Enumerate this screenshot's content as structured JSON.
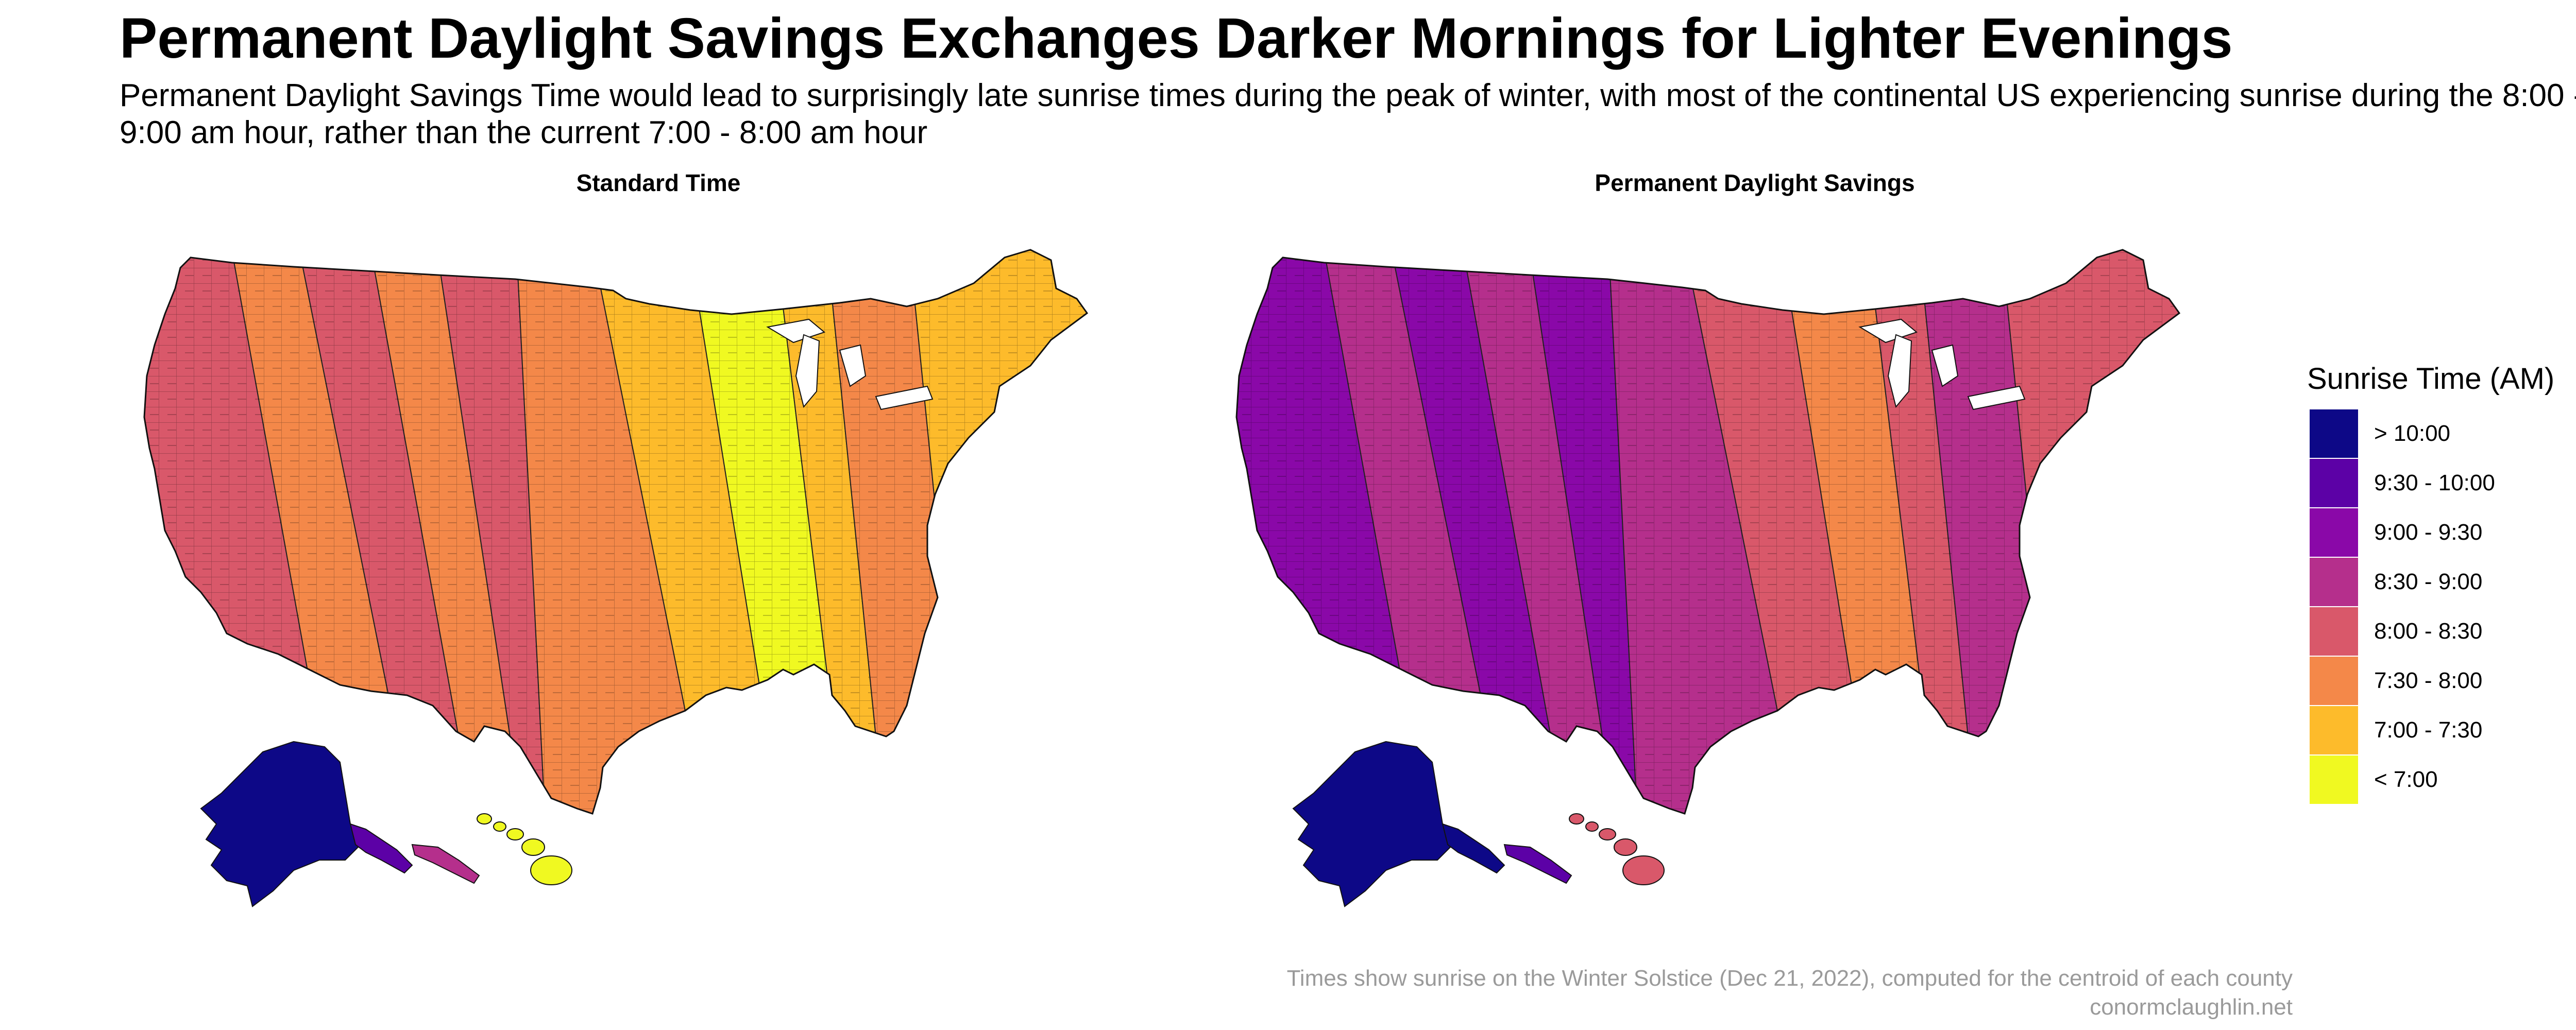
{
  "title": "Permanent Daylight Savings Exchanges Darker Mornings for Lighter Evenings",
  "subtitle": "Permanent Daylight Savings Time would lead to surprisingly late sunrise times during the peak of winter, with most of the continental US experiencing sunrise during the 8:00 - 9:00 am hour, rather than the current 7:00 - 8:00 am hour",
  "maps": [
    {
      "title": "Standard Time",
      "bands": [
        3,
        2,
        3,
        2,
        3,
        2,
        1,
        0,
        1,
        2,
        1
      ],
      "alaska": 7,
      "alaska_tail": 6,
      "aleutians": 4,
      "hawaii": 0
    },
    {
      "title": "Permanent Daylight Savings",
      "bands": [
        5,
        4,
        5,
        4,
        5,
        4,
        3,
        2,
        3,
        4,
        3
      ],
      "alaska": 7,
      "alaska_tail": 7,
      "aleutians": 6,
      "hawaii": 3
    }
  ],
  "legend": {
    "title": "Sunrise Time (AM)",
    "items": [
      {
        "label": "> 10:00",
        "color": "#0d0887"
      },
      {
        "label": "9:30 - 10:00",
        "color": "#5c01a6"
      },
      {
        "label": "9:00 - 9:30",
        "color": "#8a08a8"
      },
      {
        "label": "8:30 - 9:00",
        "color": "#b52f8c"
      },
      {
        "label": "8:00 - 8:30",
        "color": "#d9586a"
      },
      {
        "label": "7:30 - 8:00",
        "color": "#f48849"
      },
      {
        "label": "7:00 - 7:30",
        "color": "#fdbb2b"
      },
      {
        "label": "< 7:00",
        "color": "#f0f921"
      }
    ]
  },
  "caption": {
    "line1": "Times show sunrise on the Winter Solstice (Dec 21, 2022), computed for the centroid of each county",
    "line2": "conormclaughlin.net"
  }
}
